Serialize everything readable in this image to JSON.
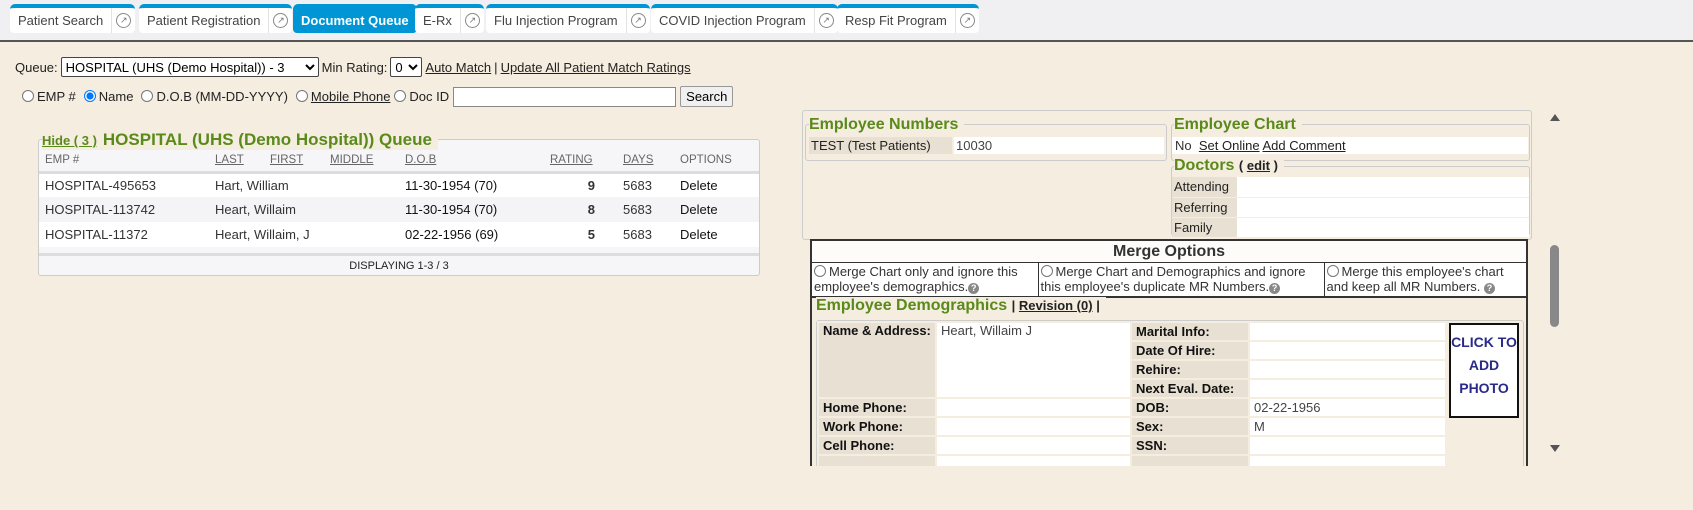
{
  "tabs": [
    {
      "label": "Patient Search",
      "active": false
    },
    {
      "label": "Patient Registration",
      "active": false
    },
    {
      "label": "Document Queue",
      "active": true
    },
    {
      "label": "E-Rx",
      "active": false
    },
    {
      "label": "Flu Injection Program",
      "active": false
    },
    {
      "label": "COVID Injection Program",
      "active": false
    },
    {
      "label": "Resp Fit Program",
      "active": false
    }
  ],
  "toolbar": {
    "queue_label": "Queue:",
    "queue_value": "HOSPITAL (UHS (Demo Hospital)) - 3",
    "min_rating_label": "Min Rating:",
    "min_rating_value": "0",
    "auto_match": "Auto Match",
    "separator": "|",
    "update_all": "Update All Patient Match Ratings"
  },
  "search": {
    "options": [
      "EMP #",
      "Name",
      "D.O.B (MM-DD-YYYY)",
      "Mobile Phone",
      "Doc ID"
    ],
    "selected": "Name",
    "input_value": "",
    "button": "Search"
  },
  "queue": {
    "hide_link": "Hide ( 3 )",
    "title": "HOSPITAL (UHS (Demo Hospital)) Queue",
    "columns": [
      "EMP #",
      "LAST",
      "FIRST",
      "MIDDLE",
      "D.O.B",
      "RATING",
      "DAYS",
      "OPTIONS"
    ],
    "rows": [
      {
        "emp": "HOSPITAL-495653",
        "name": "Hart, William",
        "dob": "11-30-1954 (70)",
        "rating": "9",
        "days": "5683",
        "option": "Delete"
      },
      {
        "emp": "HOSPITAL-113742",
        "name": "Heart, Willaim",
        "dob": "11-30-1954 (70)",
        "rating": "8",
        "days": "5683",
        "option": "Delete"
      },
      {
        "emp": "HOSPITAL-11372",
        "name": "Heart, Willaim, J",
        "dob": "02-22-1956 (69)",
        "rating": "5",
        "days": "5683",
        "option": "Delete"
      }
    ],
    "footer": "DISPLAYING 1-3 / 3"
  },
  "employee_numbers": {
    "title": "Employee Numbers",
    "key": "TEST (Test Patients)",
    "value": "10030"
  },
  "employee_chart": {
    "title": "Employee Chart",
    "status": "No",
    "set_online": "Set Online",
    "add_comment": "Add Comment"
  },
  "doctors": {
    "title": "Doctors",
    "edit_open": "(",
    "edit": "edit",
    "edit_close": ")",
    "rows": [
      {
        "label": "Attending",
        "value": ""
      },
      {
        "label": "Referring",
        "value": ""
      },
      {
        "label": "Family",
        "value": ""
      }
    ]
  },
  "merge": {
    "title": "Merge Options",
    "options": [
      "Merge Chart only and ignore this employee's demographics.",
      "Merge Chart and Demographics and ignore this employee's duplicate MR Numbers.",
      "Merge this employee's chart and keep all MR Numbers."
    ]
  },
  "demographics": {
    "title": "Employee Demographics",
    "sep1": "|",
    "revision": "Revision (0)",
    "sep2": "|",
    "name_label": "Name & Address:",
    "name_value": "Heart, Willaim J",
    "home_phone": "Home Phone:",
    "work_phone": "Work Phone:",
    "cell_phone": "Cell Phone:",
    "marital": "Marital Info:",
    "hire": "Date Of Hire:",
    "rehire": "Rehire:",
    "next_eval": "Next Eval. Date:",
    "dob_label": "DOB:",
    "dob_value": "02-22-1956",
    "sex_label": "Sex:",
    "sex_value": "M",
    "ssn_label": "SSN:",
    "photo": "CLICK TO ADD PHOTO"
  },
  "colors": {
    "tab_accent": "#0096d6",
    "heading_green": "#5a8a1a",
    "background": "#f4ede0"
  }
}
